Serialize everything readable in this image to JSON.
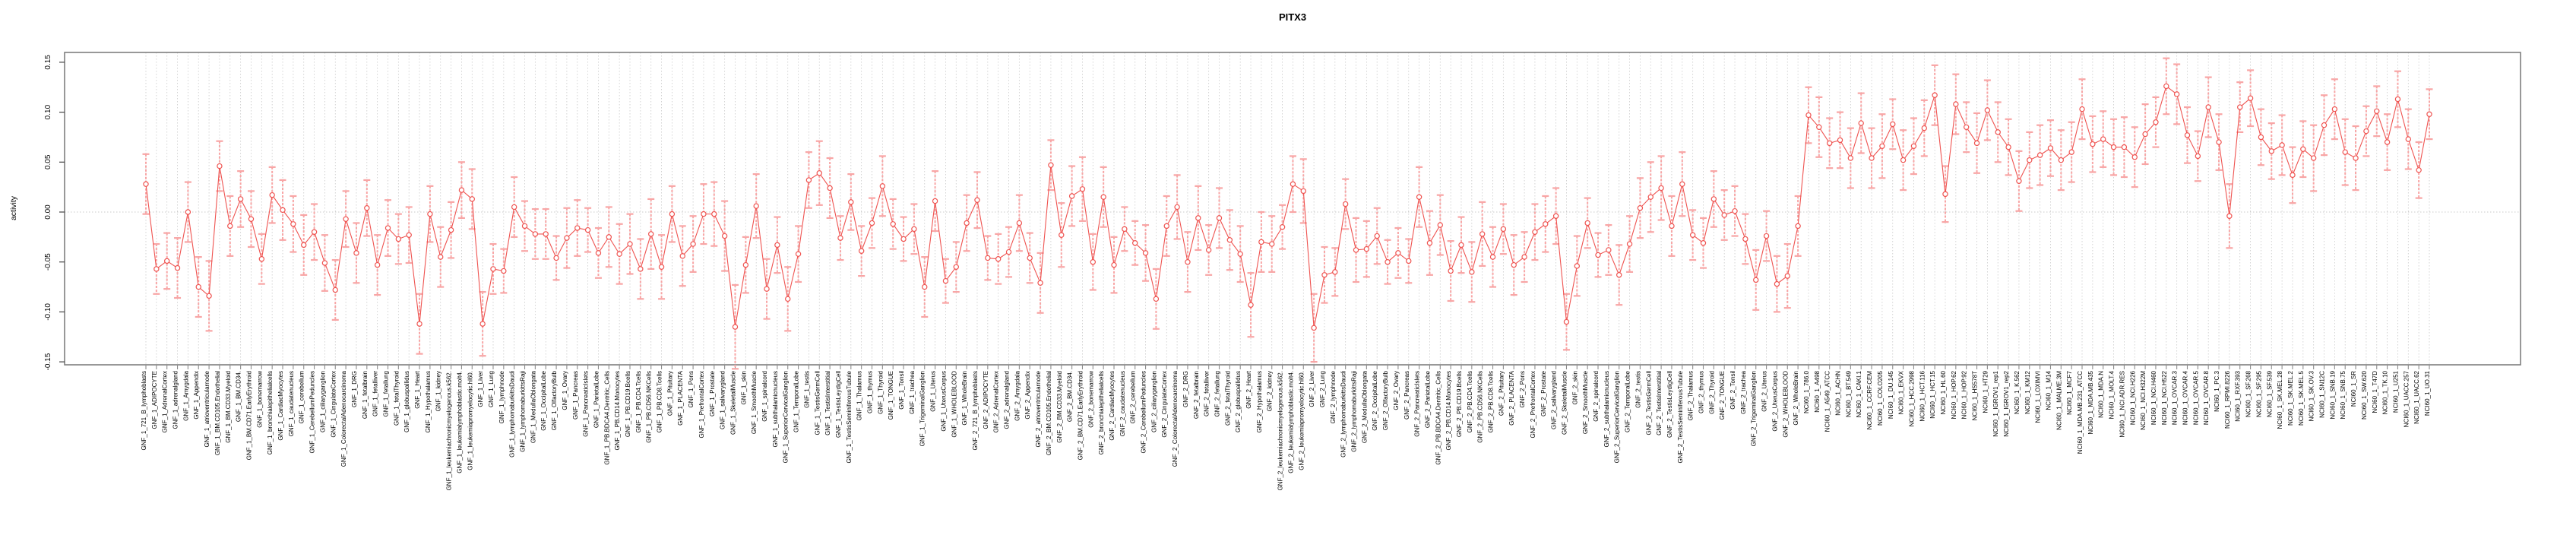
{
  "title": "PITX3",
  "colors": {
    "line": "#ef5350",
    "marker_stroke": "#ef5350",
    "marker_fill": "#ffffff",
    "error_bar": "#f8a5a5",
    "grid": "#c9c9c9",
    "box_border": "#7f7f7f",
    "tick": "#8c8c8c",
    "zero_line": "#c9c9c9",
    "label_text": "#000000"
  },
  "chart_data": {
    "type": "line",
    "title": "PITX3",
    "xlabel": "",
    "ylabel": "activity",
    "ylim": [
      -0.155,
      0.16
    ],
    "yticks": [
      -0.15,
      -0.1,
      -0.05,
      0.0,
      0.05,
      0.1,
      0.15
    ],
    "ytick_labels": [
      "-0.15",
      "-0.10",
      "-0.05",
      "0.00",
      "0.05",
      "0.10",
      "0.15"
    ],
    "grid": "dotted vertical gridline per category; dotted horizontal line at y=0",
    "legend": "none",
    "marker": "open-circle",
    "error_bars": true,
    "categories": [
      "GNF_1_721_B_lymphoblasts",
      "GNF_1_ADIPOCYTE",
      "GNF_1_AdrenalCortex",
      "GNF_1_adrenalgland",
      "GNF_1_Amygdala",
      "GNF_1_Appendix",
      "GNF_1_atrioventricularnode",
      "GNF_1_BM.CD105.Endothelial",
      "GNF_1_BM.CD33.Myeloid",
      "GNF_1_BM.CD34.",
      "GNF_1_BM.CD71.EarlyErythroid",
      "GNF_1_bonemarrow",
      "GNF_1_bronchialepithelialcells",
      "GNF_1_CardiacMyocytes",
      "GNF_1_caudatenucleus",
      "GNF_1_cerebellum",
      "GNF_1_CerebellumPeduncles",
      "GNF_1_ciliaryganglion",
      "GNF_1_CingulateCortex",
      "GNF_1_ColorectalAdenocarcinoma",
      "GNF_1_DRG",
      "GNF_1_fetalbrain",
      "GNF_1_fetalliver",
      "GNF_1_fetallung",
      "GNF_1_fetalThyroid",
      "GNF_1_globuspallidus",
      "GNF_1_Heart",
      "GNF_1_Hypothalamus",
      "GNF_1_kidney",
      "GNF_1_leukemiachronicmyelogenous.k562.",
      "GNF_1_leukemialymphoblastic.molt4.",
      "GNF_1_leukemiapromyelocytic.hl60.",
      "GNF_1_Liver",
      "GNF_1_Lung",
      "GNF_1_lymphnode",
      "GNF_1_lymphomaburkittsDaudi",
      "GNF_1_lymphomaburkittsRaji",
      "GNF_1_MedullaOblongata",
      "GNF_1_OccipitalLobe",
      "GNF_1_OlfactoryBulb",
      "GNF_1_Ovary",
      "GNF_1_Pancreas",
      "GNF_1_PancreaticIslets",
      "GNF_1_ParietalLobe",
      "GNF_1_PB.BDCA4.Dentritic_Cells",
      "GNF_1_PB.CD14.Monocytes",
      "GNF_1_PB.CD19.Bcells",
      "GNF_1_PB.CD4.Tcells",
      "GNF_1_PB.CD56.NKCells",
      "GNF_1_PB.CD8.Tcells",
      "GNF_1_Pituitary",
      "GNF_1_PLACENTA",
      "GNF_1_Pons",
      "GNF_1_PrefrontalCortex",
      "GNF_1_Prostate",
      "GNF_1_salivarygland",
      "GNF_1_SkeletalMuscle",
      "GNF_1_skin",
      "GNF_1_SmoothMuscle",
      "GNF_1_spinalcord",
      "GNF_1_subthalamicnucleus",
      "GNF_1_SuperiorCervicalGanglion",
      "GNF_1_TemporalLobe",
      "GNF_1_testis",
      "GNF_1_TestisGermCell",
      "GNF_1_TestisInterstitial",
      "GNF_1_TestisLeydigCell",
      "GNF_1_TestisSeminiferousTubule",
      "GNF_1_Thalamus",
      "GNF_1_thymus",
      "GNF_1_Thyroid",
      "GNF_1_TONGUE",
      "GNF_1_Tonsil",
      "GNF_1_trachea",
      "GNF_1_TrigeminalGanglion",
      "GNF_1_Uterus",
      "GNF_1_UterusCorpus",
      "GNF_1_WHOLEBLOOD",
      "GNF_1_WholeBrain",
      "GNF_2_721_B_lymphoblasts",
      "GNF_2_ADIPOCYTE",
      "GNF_2_AdrenalCortex",
      "GNF_2_adrenalgland",
      "GNF_2_Amygdala",
      "GNF_2_Appendix",
      "GNF_2_atrioventricularnode",
      "GNF_2_BM.CD105.Endothelial",
      "GNF_2_BM.CD33.Myeloid",
      "GNF_2_BM.CD34.",
      "GNF_2_BM.CD71.EarlyErythroid",
      "GNF_2_bonemarrow",
      "GNF_2_bronchialepithelialcells",
      "GNF_2_CardiacMyocytes",
      "GNF_2_caudatenucleus",
      "GNF_2_cerebellum",
      "GNF_2_CerebellumPeduncles",
      "GNF_2_ciliaryganglion",
      "GNF_2_CingulateCortex",
      "GNF_2_ColorectalAdenocarcinoma",
      "GNF_2_DRG",
      "GNF_2_fetalbrain",
      "GNF_2_fetalliver",
      "GNF_2_fetallung",
      "GNF_2_fetalThyroid",
      "GNF_2_globuspallidus",
      "GNF_2_Heart",
      "GNF_2_Hypothalamus",
      "GNF_2_kidney",
      "GNF_2_leukemiachronicmyelogenous.k562.",
      "GNF_2_leukemialymphoblastic.molt4.",
      "GNF_2_leukemiapromyelocytic.hl60.",
      "GNF_2_Liver",
      "GNF_2_Lung",
      "GNF_2_lymphnode",
      "GNF_2_lymphomaburkittsDaudi",
      "GNF_2_lymphomaburkittsRaji",
      "GNF_2_MedullaOblongata",
      "GNF_2_OccipitalLobe",
      "GNF_2_OlfactoryBulb",
      "GNF_2_Ovary",
      "GNF_2_Pancreas",
      "GNF_2_PancreaticIslets",
      "GNF_2_ParietalLobe",
      "GNF_2_PB.BDCA4.Dentritic_Cells",
      "GNF_2_PB.CD14.Monocytes",
      "GNF_2_PB.CD19.Bcells",
      "GNF_2_PB.CD4.Tcells",
      "GNF_2_PB.CD56.NKCells",
      "GNF_2_PB.CD8.Tcells",
      "GNF_2_Pituitary",
      "GNF_2_PLACENTA",
      "GNF_2_Pons",
      "GNF_2_PrefrontalCortex",
      "GNF_2_Prostate",
      "GNF_2_salivarygland",
      "GNF_2_SkeletalMuscle",
      "GNF_2_skin",
      "GNF_2_SmoothMuscle",
      "GNF_2_spinalcord",
      "GNF_2_subthalamicnucleus",
      "GNF_2_SuperiorCervicalGanglion",
      "GNF_2_TemporalLobe",
      "GNF_2_testis",
      "GNF_2_TestisGermCell",
      "GNF_2_TestisInterstitial",
      "GNF_2_TestisLeydigCell",
      "GNF_2_TestisSeminiferousTubule",
      "GNF_2_Thalamus",
      "GNF_2_thymus",
      "GNF_2_Thyroid",
      "GNF_2_TONGUE",
      "GNF_2_Tonsil",
      "GNF_2_trachea",
      "GNF_2_TrigeminalGanglion",
      "GNF_2_Uterus",
      "GNF_2_UterusCorpus",
      "GNF_2_WHOLEBLOOD",
      "GNF_2_WholeBrain",
      "NCI60_1_786.0",
      "NCI60_1_A498",
      "NCI60_1_A549_ATCC",
      "NCI60_1_ACHN",
      "NCI60_1_BT.549",
      "NCI60_1_CAKI.1",
      "NCI60_1_CCRF.CEM",
      "NCI60_1_COLO205",
      "NCI60_1_DU.145",
      "NCI60_1_EKVX",
      "NCI60_1_HCC.2998",
      "NCI60_1_HCT.116",
      "NCI60_1_HCT.15",
      "NCI60_1_HL.60",
      "NCI60_1_HOP.62",
      "NCI60_1_HOP.92",
      "NCI60_1_HS578T",
      "NCI60_1_HT29",
      "NCI60_1_IGROV1_rep1",
      "NCI60_1_IGROV1_rep2",
      "NCI60_1_K.562",
      "NCI60_1_KM12",
      "NCI60_1_LOXIMVI",
      "NCI60_1_M14",
      "NCI60_1_MALME.3M",
      "NCI60_1_MCF7",
      "NCI60_1_MDA.MB.231_ATCC",
      "NCI60_1_MDA.MB.435",
      "NCI60_1_MDA.N",
      "NCI60_1_MOLT.4",
      "NCI60_1_NCI.ADR.RES",
      "NCI60_1_NCI.H226",
      "NCI60_1_NCI.H322M",
      "NCI60_1_NCI.H460",
      "NCI60_1_NCI.H522",
      "NCI60_1_OVCAR.3",
      "NCI60_1_OVCAR.4",
      "NCI60_1_OVCAR.5",
      "NCI60_1_OVCAR.8",
      "NCI60_1_PC.3",
      "NCI60_1_RPMI.8226",
      "NCI60_1_RXF.393",
      "NCI60_1_SF.268",
      "NCI60_1_SF.295",
      "NCI60_1_SF.539",
      "NCI60_1_SK.MEL.28",
      "NCI60_1_SK.MEL.2",
      "NCI60_1_SK.MEL.5",
      "NCI60_1_SK.OV.3",
      "NCI60_1_SN12C",
      "NCI60_1_SNB.19",
      "NCI60_1_SNB.75",
      "NCI60_1_SR",
      "NCI60_1_SW.620",
      "NCI60_1_T47D",
      "NCI60_1_TK.10",
      "NCI60_1_U251",
      "NCI60_1_UACC.257",
      "NCI60_1_UACC.62",
      "NCI60_1_UO.31"
    ],
    "series": [
      {
        "name": "activity",
        "values": [
          0.028,
          -0.057,
          -0.049,
          -0.056,
          0.0,
          -0.075,
          -0.084,
          0.046,
          -0.014,
          0.013,
          -0.007,
          -0.047,
          0.017,
          0.002,
          -0.012,
          -0.033,
          -0.02,
          -0.051,
          -0.078,
          -0.007,
          -0.041,
          0.004,
          -0.053,
          -0.016,
          -0.027,
          -0.023,
          -0.112,
          -0.002,
          -0.045,
          -0.018,
          0.022,
          0.013,
          -0.112,
          -0.057,
          -0.059,
          0.005,
          -0.014,
          -0.022,
          -0.022,
          -0.046,
          -0.026,
          -0.016,
          -0.018,
          -0.041,
          -0.025,
          -0.042,
          -0.032,
          -0.057,
          -0.022,
          -0.055,
          -0.002,
          -0.044,
          -0.032,
          -0.002,
          -0.002,
          -0.024,
          -0.115,
          -0.053,
          0.006,
          -0.077,
          -0.033,
          -0.087,
          -0.042,
          0.032,
          0.039,
          0.024,
          -0.026,
          0.01,
          -0.039,
          -0.011,
          0.026,
          -0.012,
          -0.027,
          -0.017,
          -0.075,
          0.011,
          -0.069,
          -0.055,
          -0.011,
          0.012,
          -0.046,
          -0.047,
          -0.04,
          -0.011,
          -0.046,
          -0.071,
          0.047,
          -0.023,
          0.016,
          0.023,
          -0.05,
          0.015,
          -0.053,
          -0.017,
          -0.031,
          -0.041,
          -0.087,
          -0.014,
          0.005,
          -0.05,
          -0.006,
          -0.038,
          -0.006,
          -0.028,
          -0.042,
          -0.093,
          -0.03,
          -0.032,
          -0.015,
          0.028,
          0.021,
          -0.116,
          -0.063,
          -0.06,
          0.008,
          -0.038,
          -0.037,
          -0.024,
          -0.05,
          -0.041,
          -0.049,
          0.015,
          -0.031,
          -0.013,
          -0.059,
          -0.033,
          -0.06,
          -0.022,
          -0.045,
          -0.017,
          -0.053,
          -0.045,
          -0.02,
          -0.012,
          -0.004,
          -0.11,
          -0.054,
          -0.011,
          -0.043,
          -0.038,
          -0.063,
          -0.032,
          0.004,
          0.015,
          0.024,
          -0.014,
          0.028,
          -0.023,
          -0.031,
          0.013,
          -0.003,
          0.001,
          -0.027,
          -0.068,
          -0.024,
          -0.072,
          -0.064,
          -0.014,
          0.097,
          0.085,
          0.069,
          0.072,
          0.054,
          0.089,
          0.054,
          0.066,
          0.088,
          0.052,
          0.066,
          0.084,
          0.117,
          0.018,
          0.108,
          0.085,
          0.069,
          0.102,
          0.08,
          0.065,
          0.031,
          0.052,
          0.057,
          0.064,
          0.052,
          0.06,
          0.103,
          0.068,
          0.073,
          0.065,
          0.065,
          0.055,
          0.078,
          0.09,
          0.126,
          0.118,
          0.077,
          0.056,
          0.105,
          0.07,
          -0.004,
          0.105,
          0.114,
          0.075,
          0.061,
          0.067,
          0.037,
          0.063,
          0.054,
          0.087,
          0.103,
          0.06,
          0.054,
          0.081,
          0.101,
          0.07,
          0.113,
          0.073,
          0.042,
          0.098
        ],
        "errors": [
          0.03,
          0.025,
          0.028,
          0.03,
          0.03,
          0.03,
          0.035,
          0.025,
          0.03,
          0.028,
          0.028,
          0.025,
          0.028,
          0.03,
          0.028,
          0.03,
          0.028,
          0.028,
          0.03,
          0.028,
          0.03,
          0.028,
          0.03,
          0.028,
          0.025,
          0.028,
          0.03,
          0.028,
          0.03,
          0.028,
          0.028,
          0.03,
          0.032,
          0.025,
          0.022,
          0.03,
          0.025,
          0.025,
          0.025,
          0.022,
          0.03,
          0.028,
          0.022,
          0.025,
          0.03,
          0.03,
          0.03,
          0.03,
          0.035,
          0.032,
          0.028,
          0.03,
          0.028,
          0.03,
          0.032,
          0.035,
          0.042,
          0.028,
          0.032,
          0.03,
          0.028,
          0.032,
          0.028,
          0.028,
          0.032,
          0.03,
          0.022,
          0.028,
          0.025,
          0.025,
          0.03,
          0.025,
          0.022,
          0.025,
          0.03,
          0.03,
          0.022,
          0.025,
          0.028,
          0.028,
          0.022,
          0.025,
          0.025,
          0.028,
          0.025,
          0.03,
          0.025,
          0.032,
          0.03,
          0.032,
          0.028,
          0.03,
          0.028,
          0.022,
          0.022,
          0.028,
          0.03,
          0.03,
          0.032,
          0.03,
          0.032,
          0.025,
          0.03,
          0.03,
          0.028,
          0.032,
          0.03,
          0.028,
          0.022,
          0.028,
          0.032,
          0.034,
          0.028,
          0.024,
          0.025,
          0.032,
          0.028,
          0.028,
          0.022,
          0.025,
          0.022,
          0.03,
          0.032,
          0.03,
          0.03,
          0.028,
          0.03,
          0.032,
          0.03,
          0.025,
          0.03,
          0.025,
          0.028,
          0.028,
          0.028,
          0.028,
          0.03,
          0.025,
          0.022,
          0.025,
          0.03,
          0.028,
          0.03,
          0.035,
          0.032,
          0.03,
          0.032,
          0.025,
          0.025,
          0.028,
          0.025,
          0.025,
          0.025,
          0.03,
          0.025,
          0.028,
          0.032,
          0.03,
          0.028,
          0.03,
          0.025,
          0.028,
          0.03,
          0.03,
          0.03,
          0.032,
          0.025,
          0.03,
          0.028,
          0.028,
          0.03,
          0.028,
          0.03,
          0.025,
          0.03,
          0.03,
          0.03,
          0.028,
          0.03,
          0.028,
          0.03,
          0.028,
          0.03,
          0.03,
          0.03,
          0.028,
          0.028,
          0.028,
          0.03,
          0.03,
          0.03,
          0.025,
          0.028,
          0.03,
          0.028,
          0.025,
          0.03,
          0.028,
          0.032,
          0.025,
          0.028,
          0.028,
          0.028,
          0.03,
          0.028,
          0.028,
          0.033,
          0.03,
          0.03,
          0.033,
          0.032,
          0.025,
          0.025,
          0.028,
          0.028,
          0.03,
          0.028,
          0.025
        ]
      }
    ]
  }
}
